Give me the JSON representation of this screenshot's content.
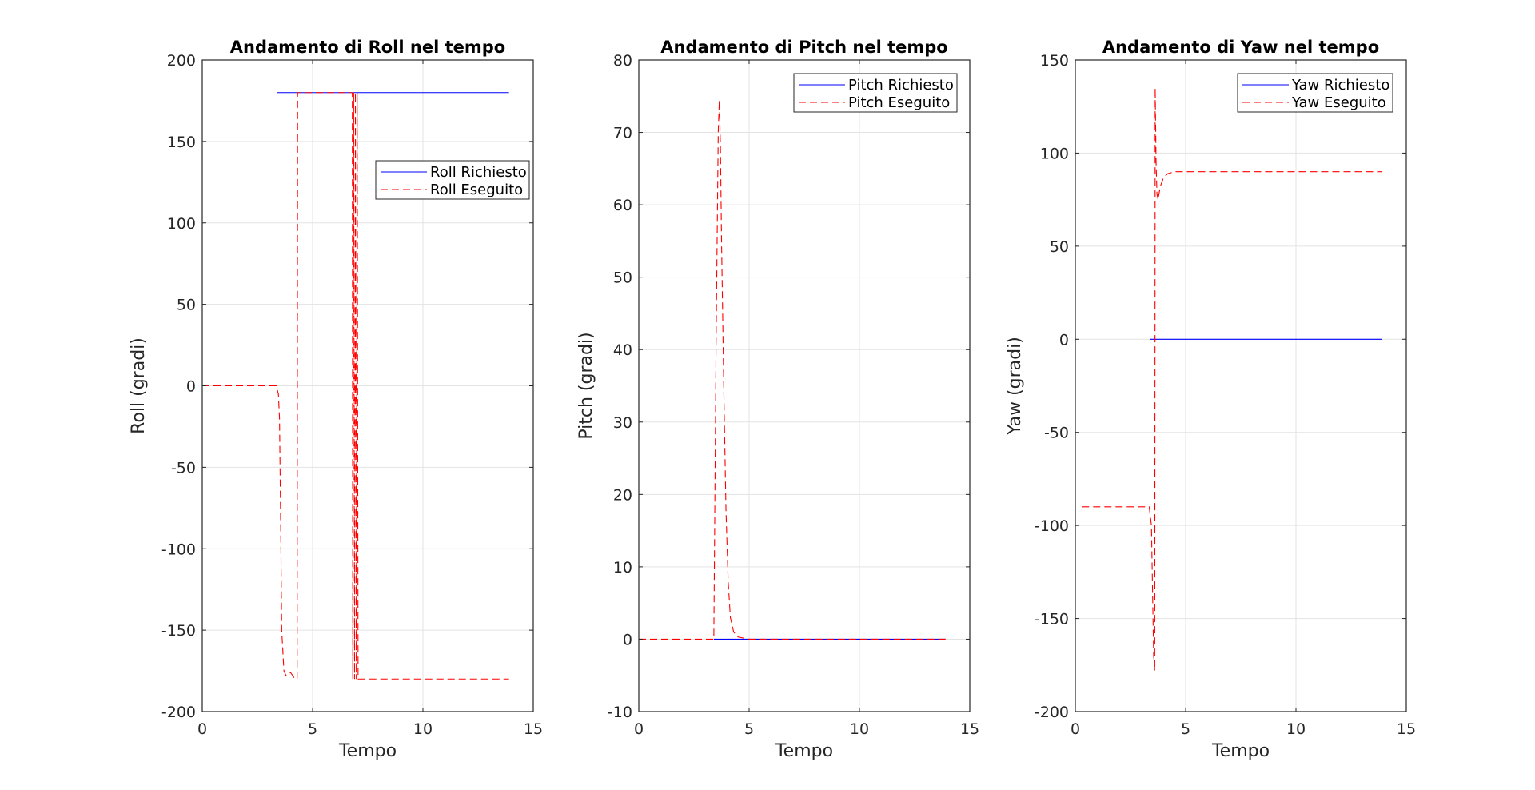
{
  "chart_data": [
    {
      "type": "line",
      "title": "Andamento di Roll nel tempo",
      "xlabel": "Tempo",
      "ylabel": "Roll (gradi)",
      "xlim": [
        0,
        15
      ],
      "ylim": [
        -200,
        200
      ],
      "xticks": [
        0,
        5,
        10,
        15
      ],
      "yticks": [
        -200,
        -150,
        -100,
        -50,
        0,
        50,
        100,
        150,
        200
      ],
      "grid": true,
      "legend_position": "right, upper third",
      "series": [
        {
          "name": "Roll Richiesto",
          "color": "#0000ff",
          "style": "solid",
          "points": [
            [
              3.4,
              180
            ],
            [
              13.9,
              180
            ]
          ]
        },
        {
          "name": "Roll Eseguito",
          "color": "#ff0000",
          "style": "dashed",
          "points": [
            [
              0,
              0
            ],
            [
              3.35,
              0
            ],
            [
              3.45,
              -5
            ],
            [
              3.5,
              -20
            ],
            [
              3.55,
              -80
            ],
            [
              3.6,
              -150
            ],
            [
              3.7,
              -175
            ],
            [
              3.8,
              -178
            ],
            [
              4.0,
              -176
            ],
            [
              4.2,
              -180
            ],
            [
              4.3,
              -180
            ],
            [
              4.32,
              180
            ],
            [
              6.8,
              180
            ],
            [
              6.82,
              -180
            ],
            [
              6.86,
              180
            ],
            [
              6.9,
              -180
            ],
            [
              6.94,
              180
            ],
            [
              6.98,
              -180
            ],
            [
              7.02,
              180
            ],
            [
              7.06,
              -180
            ],
            [
              7.2,
              -180
            ],
            [
              13.9,
              -180
            ]
          ]
        }
      ]
    },
    {
      "type": "line",
      "title": "Andamento di Pitch nel tempo",
      "xlabel": "Tempo",
      "ylabel": "Pitch (gradi)",
      "xlim": [
        0,
        15
      ],
      "ylim": [
        -10,
        80
      ],
      "xticks": [
        0,
        5,
        10,
        15
      ],
      "yticks": [
        -10,
        0,
        10,
        20,
        30,
        40,
        50,
        60,
        70,
        80
      ],
      "grid": true,
      "legend_position": "top-right",
      "series": [
        {
          "name": "Pitch Richiesto",
          "color": "#0000ff",
          "style": "solid",
          "points": [
            [
              3.4,
              0
            ],
            [
              13.9,
              0
            ]
          ]
        },
        {
          "name": "Pitch Eseguito",
          "color": "#ff0000",
          "style": "dashed",
          "points": [
            [
              0,
              0
            ],
            [
              3.4,
              0
            ],
            [
              3.45,
              20
            ],
            [
              3.5,
              40
            ],
            [
              3.55,
              55
            ],
            [
              3.6,
              70
            ],
            [
              3.65,
              74.5
            ],
            [
              3.7,
              68
            ],
            [
              3.75,
              55
            ],
            [
              3.85,
              35
            ],
            [
              3.95,
              18
            ],
            [
              4.05,
              8
            ],
            [
              4.15,
              3
            ],
            [
              4.3,
              1
            ],
            [
              4.5,
              0.3
            ],
            [
              5.0,
              0
            ],
            [
              13.9,
              0
            ]
          ]
        }
      ]
    },
    {
      "type": "line",
      "title": "Andamento di Yaw nel tempo",
      "xlabel": "Tempo",
      "ylabel": "Yaw (gradi)",
      "xlim": [
        0,
        15
      ],
      "ylim": [
        -200,
        150
      ],
      "xticks": [
        0,
        5,
        10,
        15
      ],
      "yticks": [
        -200,
        -150,
        -100,
        -50,
        0,
        50,
        100,
        150
      ],
      "grid": true,
      "legend_position": "top-right",
      "series": [
        {
          "name": "Yaw Richiesto",
          "color": "#0000ff",
          "style": "solid",
          "points": [
            [
              3.4,
              0
            ],
            [
              13.9,
              0
            ]
          ]
        },
        {
          "name": "Yaw Eseguito",
          "color": "#ff0000",
          "style": "dashed",
          "points": [
            [
              0.3,
              -90
            ],
            [
              3.35,
              -90
            ],
            [
              3.45,
              -100
            ],
            [
              3.55,
              -170
            ],
            [
              3.6,
              -178
            ],
            [
              3.62,
              135
            ],
            [
              3.66,
              95
            ],
            [
              3.7,
              78
            ],
            [
              3.75,
              75
            ],
            [
              3.85,
              82
            ],
            [
              4.0,
              87
            ],
            [
              4.2,
              89
            ],
            [
              4.5,
              90
            ],
            [
              13.9,
              90
            ]
          ]
        }
      ]
    }
  ]
}
